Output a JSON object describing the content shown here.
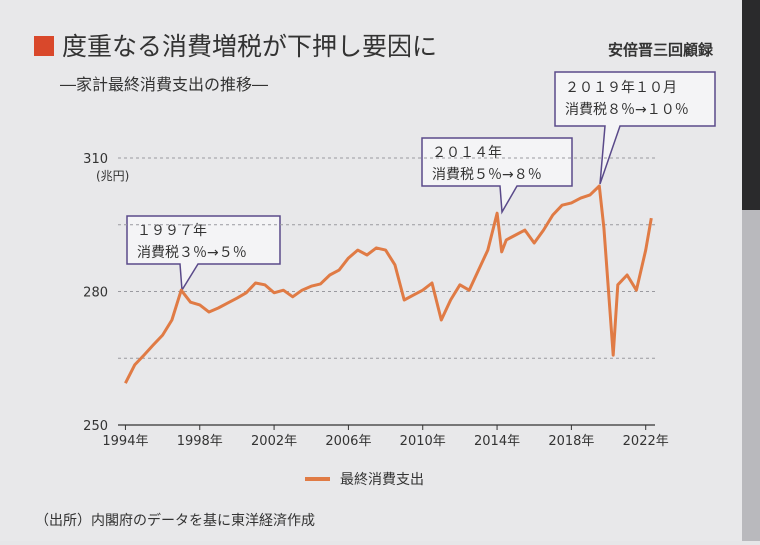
{
  "chart_data": {
    "type": "line",
    "title": "度重なる消費増税が下押し要因に",
    "subtitle": "―家計最終消費支出の推移―",
    "y_unit": "(兆円)",
    "logo": "安倍晋三回顧録",
    "source": "（出所）内閣府のデータを基に東洋経済作成",
    "x": [
      1994.0,
      1994.5,
      1995.0,
      1995.5,
      1996.0,
      1996.5,
      1997.0,
      1997.5,
      1998.0,
      1998.5,
      1999.0,
      1999.5,
      2000.0,
      2000.5,
      2001.0,
      2001.5,
      2002.0,
      2002.5,
      2003.0,
      2003.5,
      2004.0,
      2004.5,
      2005.0,
      2005.5,
      2006.0,
      2006.5,
      2007.0,
      2007.5,
      2008.0,
      2008.5,
      2009.0,
      2009.5,
      2010.0,
      2010.5,
      2011.0,
      2011.5,
      2012.0,
      2012.5,
      2013.0,
      2013.5,
      2014.0,
      2014.25,
      2014.5,
      2015.0,
      2015.5,
      2016.0,
      2016.5,
      2017.0,
      2017.5,
      2018.0,
      2018.5,
      2019.0,
      2019.5,
      2019.75,
      2020.25,
      2020.5,
      2021.0,
      2021.5,
      2022.0,
      2022.3
    ],
    "series": [
      {
        "name": "最終消費支出",
        "color": "#e07b45",
        "values": [
          259.4,
          263.5,
          265.7,
          268,
          270.2,
          273.6,
          280.3,
          277.6,
          277,
          275.4,
          276.3,
          277.4,
          278.5,
          279.7,
          281.9,
          281.5,
          279.7,
          280.3,
          278.8,
          280.3,
          281.2,
          281.7,
          283.7,
          284.8,
          287.5,
          289.3,
          288.2,
          289.8,
          289.3,
          286,
          278.1,
          279.2,
          280.3,
          281.9,
          273.6,
          278.1,
          281.5,
          280.3,
          284.8,
          289.3,
          297.6,
          288.9,
          291.6,
          292.7,
          293.8,
          290.9,
          293.8,
          297.2,
          299.4,
          299.9,
          301,
          301.7,
          303.7,
          294.3,
          265.7,
          281.5,
          283.7,
          280.3,
          289.3,
          296.5
        ]
      }
    ],
    "xlim": [
      1993.6,
      2022.5
    ],
    "xticks": [
      {
        "value": 1994,
        "label": "1994年"
      },
      {
        "value": 1998,
        "label": "1998年"
      },
      {
        "value": 2002,
        "label": "2002年"
      },
      {
        "value": 2006,
        "label": "2006年"
      },
      {
        "value": 2010,
        "label": "2010年"
      },
      {
        "value": 2014,
        "label": "2014年"
      },
      {
        "value": 2018,
        "label": "2018年"
      },
      {
        "value": 2022,
        "label": "2022年"
      }
    ],
    "ylim": [
      250,
      310
    ],
    "yticks": [
      250,
      280,
      310
    ],
    "grid_lines": [
      250,
      265,
      280,
      295,
      310
    ],
    "annotations": [
      {
        "lines": [
          "１９９７年",
          "消費税３％→５％"
        ]
      },
      {
        "lines": [
          "２０１４年",
          "消費税５％→８％"
        ]
      },
      {
        "lines": [
          "２０１９年１０月",
          "消費税８％→１０％"
        ]
      }
    ]
  }
}
